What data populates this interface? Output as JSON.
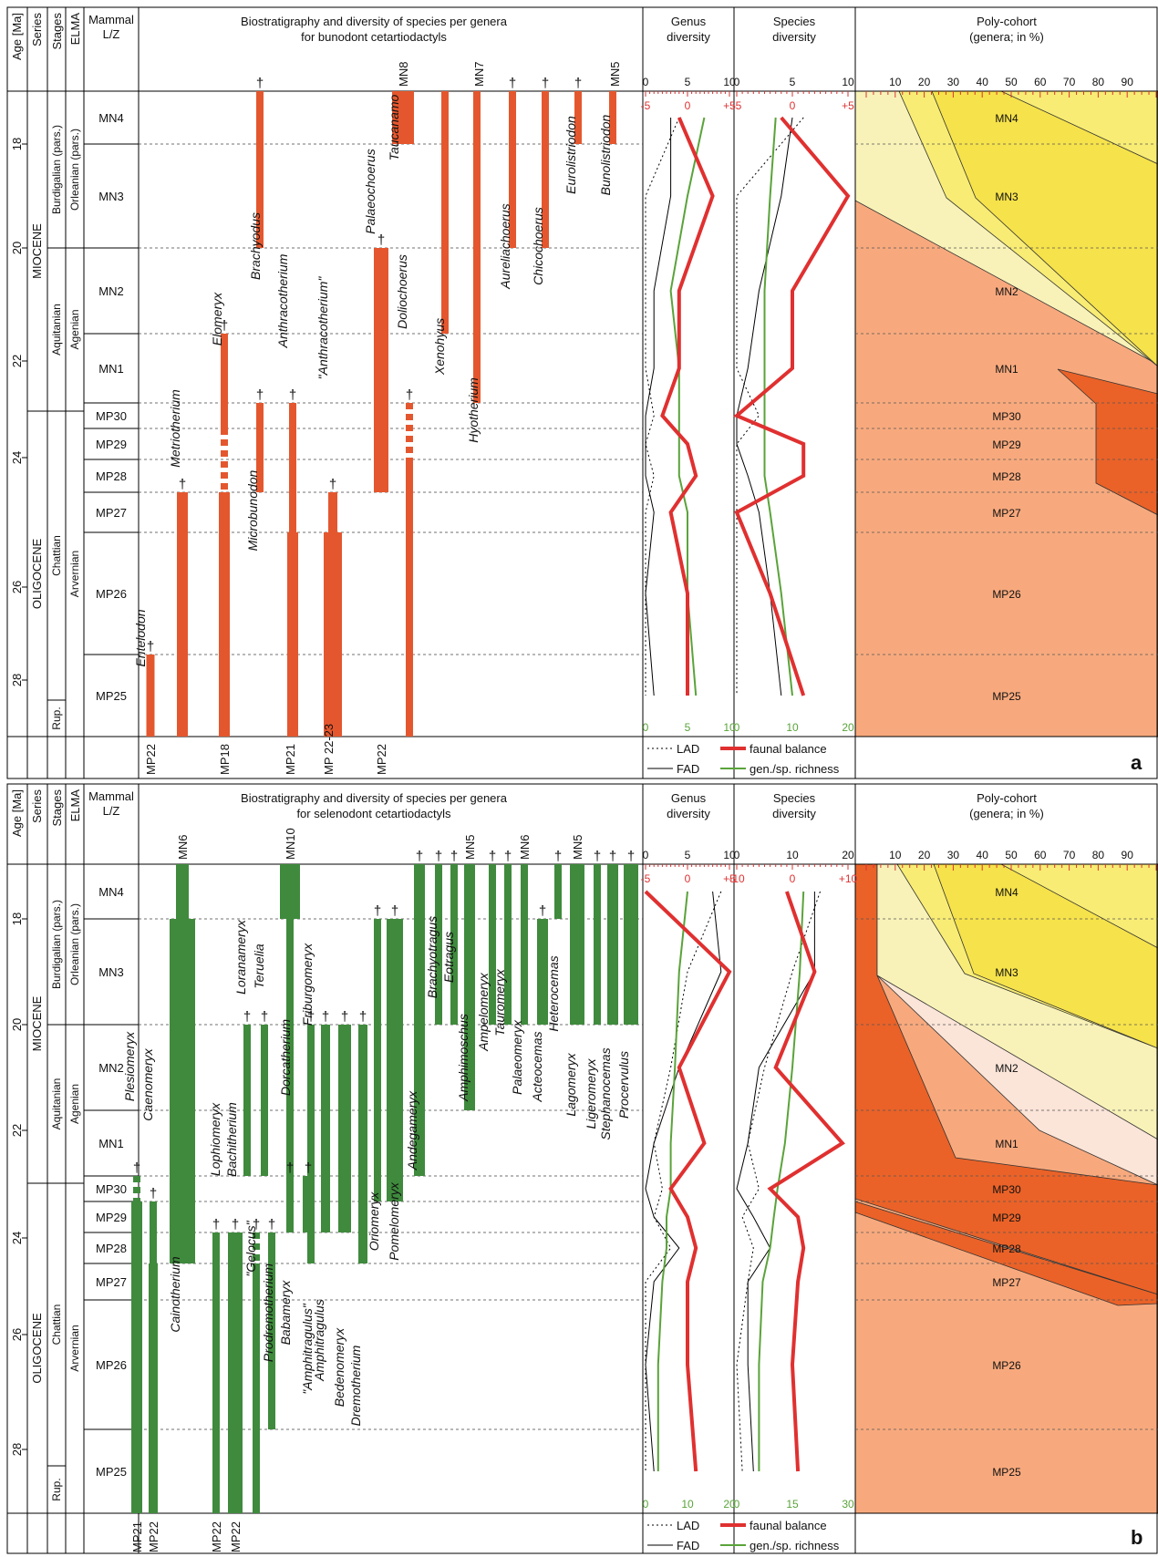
{
  "colors": {
    "bunodont": "#e4572e",
    "selenodont": "#3f8a3d",
    "balance": "#e03030",
    "richness": "#5aa33a",
    "pc1": "#f6e24a",
    "pc2": "#f8ec74",
    "pc3": "#f8f2b8",
    "pc4": "#f7a97d",
    "pc5": "#ea6228",
    "pc6": "#fbe4d8"
  },
  "headers": {
    "age": "Age [Ma]",
    "series": "Series",
    "stages": "Stages",
    "elma": "ELMA",
    "mammal": "Mammal L/Z",
    "genus_div": "Genus diversity",
    "species_div": "Species diversity",
    "poly_l1": "Poly-cohort",
    "poly_l2": "(genera; in %)",
    "biostrat_a_l1": "Biostratigraphy and diversity of species per genera",
    "biostrat_a_l2": "for bunodont cetartiodactyls",
    "biostrat_b_l1": "Biostratigraphy and diversity of species per genera",
    "biostrat_b_l2": "for selenodont cetartiodactyls"
  },
  "strat": {
    "series": [
      "MIOCENE",
      "OLIGOCENE"
    ],
    "stages": [
      "Burdigalian (pars.)",
      "Aquitanian",
      "Chattian",
      "Rup."
    ],
    "elma": [
      "Orleanian (pars.)",
      "Agenian",
      "Arvernian"
    ],
    "zones": [
      "MN4",
      "MN3",
      "MN2",
      "MN1",
      "MP30",
      "MP29",
      "MP28",
      "MP27",
      "MP26",
      "MP25"
    ],
    "ages": [
      "18",
      "20",
      "22",
      "24",
      "26",
      "28"
    ]
  },
  "legend": {
    "lad": "LAD",
    "fad": "FAD",
    "balance": "faunal balance",
    "richness": "gen./sp. richness"
  },
  "panel_a": {
    "label": "a",
    "genus_axis": {
      "top": [
        "0",
        "5",
        "10"
      ],
      "red": [
        "-5",
        "0",
        "+5"
      ],
      "bottom": [
        "0",
        "5",
        "10"
      ]
    },
    "species_axis": {
      "top": [
        "0",
        "5",
        "10"
      ],
      "red": [
        "-5",
        "0",
        "+5"
      ],
      "bottom": [
        "0",
        "10",
        "20"
      ]
    },
    "poly_ticks": [
      "10",
      "20",
      "30",
      "40",
      "50",
      "60",
      "70",
      "80",
      "90"
    ],
    "col_labels": [
      "MP22",
      "MP18",
      "MP21",
      "MP 22-23",
      "MP22"
    ],
    "top_labels": [
      "MN8",
      "MN7",
      "MN5"
    ],
    "genera": [
      "Entelodon",
      "Metriotherium",
      "Elomeryx",
      "Microbunodon",
      "Brachyodus",
      "Anthracotherium",
      "\"Anthracotherium\"",
      "Palaeochoerus",
      "Doliochoerus",
      "Taucanamo",
      "Xenohyus",
      "Hyotherium",
      "Aureliachoerus",
      "Chicochoerus",
      "Eurolistriodon",
      "Bunolistriodon"
    ]
  },
  "panel_b": {
    "label": "b",
    "genus_axis": {
      "top": [
        "0",
        "5",
        "10"
      ],
      "red": [
        "-5",
        "0",
        "+5"
      ],
      "bottom": [
        "0",
        "10",
        "20"
      ]
    },
    "species_axis": {
      "top": [
        "0",
        "10",
        "20"
      ],
      "red": [
        "-10",
        "0",
        "+10"
      ],
      "bottom": [
        "0",
        "15",
        "30"
      ]
    },
    "poly_ticks": [
      "10",
      "20",
      "30",
      "40",
      "50",
      "60",
      "70",
      "80",
      "90"
    ],
    "col_labels": [
      "MP21",
      "MP22",
      "MP22",
      "MP22"
    ],
    "top_labels": [
      "MN6",
      "MN10",
      "MN5",
      "MN6",
      "MN5"
    ],
    "genera": [
      "Plesiomeryx",
      "Caenomeryx",
      "Cainotherium",
      "Lophiomeryx",
      "Bachitherium",
      "\"Gelocus\"",
      "Prodremotherium",
      "Babameryx",
      "Dorcatherium",
      "Loranameryx",
      "Teruelia",
      "Friburgomeryx",
      "\"Amphitragulus\"",
      "Amphitragulus",
      "Bedenomeryx",
      "Dremotherium",
      "Oriomeryx",
      "Pomelomeryx",
      "Andegameryx",
      "Brachyotragus",
      "Eotragus",
      "Amphimoschus",
      "Ampelomeryx",
      "Tauromeryx",
      "Palaeomeryx",
      "Acteocemas",
      "Heterocemas",
      "Lagomeryx",
      "Ligeromeryx",
      "Stephanocemas",
      "Procervulus"
    ]
  },
  "chart_data": [
    {
      "type": "line",
      "name": "panel a – bunodont cetartiodactyls",
      "zones": [
        "MN4",
        "MN3",
        "MN2",
        "MN1",
        "MP30",
        "MP29",
        "MP28",
        "MP27",
        "MP26",
        "MP25"
      ],
      "genus": {
        "lad": [
          4,
          0,
          0,
          0,
          1,
          0,
          1,
          0,
          0,
          0
        ],
        "fad": [
          3,
          3,
          1,
          1,
          0,
          0,
          0,
          1,
          0,
          1
        ],
        "balance": [
          -1,
          3,
          -1,
          -1,
          -3,
          0,
          1,
          -2,
          0,
          0
        ],
        "richness": [
          7,
          5,
          3,
          4,
          4,
          4,
          4,
          5,
          5,
          6
        ]
      },
      "species": {
        "lad": [
          6,
          0,
          0,
          0,
          2,
          0,
          0,
          0,
          0,
          0
        ],
        "fad": [
          5,
          4,
          2,
          1,
          0,
          0,
          1,
          2,
          3,
          4
        ],
        "balance": [
          -1,
          5,
          0,
          0,
          -5,
          1,
          1,
          -5,
          -2,
          1
        ],
        "richness": [
          7,
          6,
          5,
          5,
          5,
          5,
          5,
          6,
          8,
          10
        ]
      }
    },
    {
      "type": "line",
      "name": "panel b – selenodont cetartiodactyls",
      "zones": [
        "MN4",
        "MN3",
        "MN2",
        "MN1",
        "MP30",
        "MP29",
        "MP28",
        "MP27",
        "MP26",
        "MP25"
      ],
      "genus": {
        "lad": [
          9,
          5,
          3,
          1,
          2,
          1,
          3,
          0,
          0,
          0
        ],
        "fad": [
          8,
          9,
          4,
          1,
          0,
          1,
          4,
          1,
          0,
          1
        ],
        "balance": [
          -5,
          5,
          -1,
          2,
          -2,
          0,
          1,
          0,
          0,
          1
        ],
        "richness": [
          10,
          8,
          7,
          6,
          6,
          5,
          5,
          4,
          3,
          3
        ]
      },
      "species": {
        "lad": [
          15,
          10,
          5,
          2,
          4,
          1,
          3,
          2,
          0,
          1
        ],
        "fad": [
          14,
          14,
          4,
          2,
          0,
          3,
          6,
          2,
          2,
          3
        ],
        "balance": [
          -1,
          4,
          -3,
          9,
          -4,
          1,
          2,
          1,
          0,
          1
        ],
        "richness": [
          18,
          17,
          15,
          13,
          11,
          10,
          9,
          7,
          6,
          6
        ]
      }
    }
  ]
}
